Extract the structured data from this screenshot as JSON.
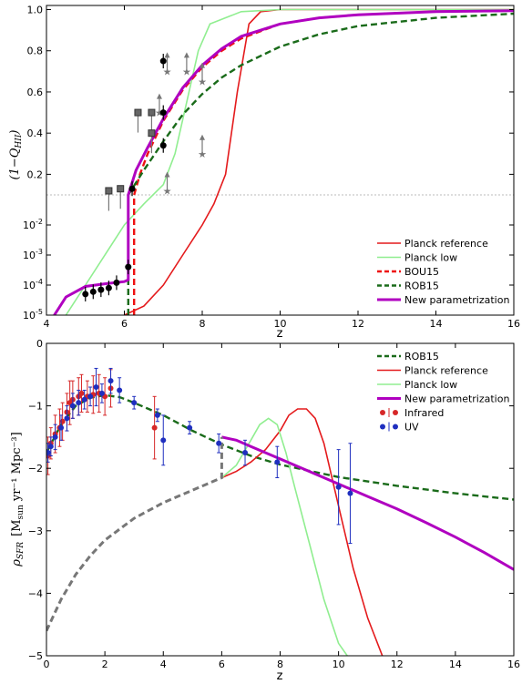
{
  "chart_data": [
    {
      "type": "line",
      "panel": "top",
      "xlabel": "z",
      "ylabel": "(1−Q_HII)",
      "ylabel_display": "(1−Q",
      "ylabel_sub": "HII",
      "ylabel_close": ")",
      "xlim": [
        4,
        16
      ],
      "x_ticks": [
        "4",
        "6",
        "8",
        "10",
        "12",
        "14",
        "16"
      ],
      "y_upper_scale": "linear",
      "y_upper_range": [
        0.1,
        1.02
      ],
      "y_upper_ticks": [
        "0.2",
        "0.4",
        "0.6",
        "0.8",
        "1.0"
      ],
      "y_lower_scale": "log",
      "y_lower_range": [
        1e-05,
        0.1
      ],
      "y_lower_ticks_exp": [
        "-5",
        "-4",
        "-3",
        "-2"
      ],
      "y_lower_base": "10",
      "legend_position": "lower-right",
      "series": [
        {
          "name": "Planck reference",
          "color": "#e41a1c",
          "style": "solid",
          "x": [
            4.0,
            5.0,
            6.0,
            6.5,
            7.0,
            7.5,
            8.0,
            8.3,
            8.6,
            8.9,
            9.2,
            9.5,
            10,
            11,
            12,
            16
          ],
          "y": [
            1e-07,
            1e-06,
            1e-05,
            2e-05,
            0.0001,
            0.001,
            0.01,
            0.05,
            0.2,
            0.6,
            0.93,
            0.99,
            1.0,
            1.0,
            1.0,
            1.0
          ]
        },
        {
          "name": "Planck low",
          "color": "#90ee90",
          "style": "solid",
          "x": [
            4.0,
            5.0,
            6.0,
            6.5,
            7.0,
            7.3,
            7.6,
            7.9,
            8.2,
            9,
            10,
            12,
            16
          ],
          "y": [
            1e-06,
            0.0001,
            0.01,
            0.05,
            0.15,
            0.3,
            0.55,
            0.8,
            0.93,
            0.99,
            1.0,
            1.0,
            1.0
          ]
        },
        {
          "name": "BOU15",
          "color": "#ee1111",
          "style": "dashed",
          "x": [
            6.25,
            6.25,
            6.4,
            6.6,
            7.0,
            7.5,
            8.0,
            8.5,
            9,
            10,
            11,
            12,
            14,
            16
          ],
          "y": [
            1e-05,
            0.1,
            0.2,
            0.3,
            0.46,
            0.61,
            0.72,
            0.8,
            0.86,
            0.93,
            0.96,
            0.975,
            0.99,
            0.995
          ]
        },
        {
          "name": "ROB15",
          "color": "#1a6b1a",
          "style": "dashed",
          "x": [
            6.1,
            6.1,
            6.5,
            7.0,
            7.5,
            8.0,
            8.5,
            9,
            10,
            11,
            12,
            14,
            16
          ],
          "y": [
            1e-05,
            0.1,
            0.22,
            0.36,
            0.49,
            0.59,
            0.67,
            0.73,
            0.82,
            0.88,
            0.92,
            0.96,
            0.98
          ]
        },
        {
          "name": "New parametrization",
          "color": "#b000c0",
          "style": "solid",
          "x": [
            4.2,
            4.5,
            5.0,
            5.5,
            6.0,
            6.1,
            6.1,
            6.3,
            6.6,
            7.0,
            7.5,
            8.0,
            8.5,
            9,
            10,
            11,
            12,
            14,
            16
          ],
          "y": [
            1e-05,
            4e-05,
            9e-05,
            0.00011,
            0.00013,
            0.00015,
            0.1,
            0.22,
            0.33,
            0.47,
            0.62,
            0.73,
            0.81,
            0.87,
            0.93,
            0.96,
            0.975,
            0.99,
            0.995
          ]
        }
      ],
      "observations": {
        "circles": [
          {
            "x": 5.0,
            "y": 5e-05
          },
          {
            "x": 5.2,
            "y": 6e-05
          },
          {
            "x": 5.4,
            "y": 7e-05
          },
          {
            "x": 5.6,
            "y": 8e-05
          },
          {
            "x": 5.8,
            "y": 0.00012
          },
          {
            "x": 6.1,
            "y": 0.0004
          },
          {
            "x": 6.2,
            "y": 0.13
          },
          {
            "x": 7.0,
            "y": 0.75
          },
          {
            "x": 7.0,
            "y": 0.5
          },
          {
            "x": 7.0,
            "y": 0.34
          }
        ],
        "squares": [
          {
            "x": 5.6,
            "y": 0.12
          },
          {
            "x": 5.9,
            "y": 0.13
          },
          {
            "x": 6.35,
            "y": 0.5
          },
          {
            "x": 6.7,
            "y": 0.5
          },
          {
            "x": 6.7,
            "y": 0.4
          }
        ],
        "stars": [
          {
            "x": 6.9,
            "y": 0.5
          },
          {
            "x": 7.1,
            "y": 0.12
          },
          {
            "x": 7.1,
            "y": 0.7
          },
          {
            "x": 7.6,
            "y": 0.7
          },
          {
            "x": 8.0,
            "y": 0.65
          },
          {
            "x": 8.0,
            "y": 0.3
          }
        ]
      }
    },
    {
      "type": "line",
      "panel": "bottom",
      "xlabel": "z",
      "ylabel_display": "ρ",
      "ylabel_sub": "SFR",
      "ylabel_units": "[M",
      "ylabel_units_sub": "sun",
      "ylabel_units_rest": " yr⁻¹ Mpc⁻³]",
      "xlim": [
        0,
        16
      ],
      "ylim": [
        -5,
        0
      ],
      "x_ticks": [
        "0",
        "2",
        "4",
        "6",
        "8",
        "10",
        "12",
        "14",
        "16"
      ],
      "y_ticks": [
        "0",
        "−1",
        "−2",
        "−3",
        "−4",
        "−5"
      ],
      "legend_position": "top-right",
      "series": [
        {
          "name": "ROB15",
          "color": "#1a6b1a",
          "style": "dashed",
          "x": [
            0,
            0.5,
            1,
            1.5,
            2,
            2.5,
            3,
            4,
            5,
            6,
            7,
            8,
            10,
            12,
            14,
            16
          ],
          "y": [
            -1.75,
            -1.3,
            -1.0,
            -0.87,
            -0.83,
            -0.86,
            -0.95,
            -1.15,
            -1.4,
            -1.62,
            -1.8,
            -1.94,
            -2.14,
            -2.28,
            -2.4,
            -2.5
          ]
        },
        {
          "name": "Planck reference",
          "color": "#e41a1c",
          "style": "solid",
          "x": [
            6.0,
            6.5,
            7.0,
            7.5,
            8.0,
            8.3,
            8.6,
            8.9,
            9.2,
            9.5,
            10.0,
            10.5,
            11.0,
            11.5
          ],
          "y": [
            -2.15,
            -2.05,
            -1.9,
            -1.7,
            -1.4,
            -1.15,
            -1.05,
            -1.05,
            -1.2,
            -1.6,
            -2.6,
            -3.6,
            -4.4,
            -5.0
          ]
        },
        {
          "name": "Planck low",
          "color": "#90ee90",
          "style": "solid",
          "x": [
            6.0,
            6.5,
            7.0,
            7.3,
            7.6,
            7.9,
            8.2,
            8.5,
            9.0,
            9.5,
            10.0,
            10.3
          ],
          "y": [
            -2.15,
            -1.95,
            -1.55,
            -1.3,
            -1.2,
            -1.3,
            -1.75,
            -2.3,
            -3.2,
            -4.1,
            -4.8,
            -5.0
          ]
        },
        {
          "name": "New parametrization",
          "color": "#b000c0",
          "style": "solid",
          "x": [
            6.0,
            6.5,
            7,
            8,
            9,
            10,
            11,
            12,
            13,
            14,
            15,
            16
          ],
          "y": [
            -1.5,
            -1.55,
            -1.65,
            -1.85,
            -2.05,
            -2.25,
            -2.45,
            -2.65,
            -2.87,
            -3.1,
            -3.35,
            -3.62
          ]
        },
        {
          "name": "",
          "color": "#777777",
          "style": "dashed",
          "x": [
            0,
            0.5,
            1,
            1.5,
            2,
            3,
            4,
            5,
            6,
            6,
            6
          ],
          "y": [
            -4.6,
            -4.1,
            -3.7,
            -3.4,
            -3.15,
            -2.8,
            -2.55,
            -2.35,
            -2.15,
            -1.95,
            -1.5
          ]
        }
      ],
      "infrared": {
        "name": "Infrared",
        "color": "#d62728",
        "x": [
          0.05,
          0.15,
          0.3,
          0.45,
          0.55,
          0.7,
          0.8,
          0.9,
          1.1,
          1.2,
          1.4,
          1.6,
          1.8,
          2.0,
          2.2,
          3.7
        ],
        "y": [
          -1.8,
          -1.6,
          -1.45,
          -1.35,
          -1.25,
          -1.1,
          -0.95,
          -0.9,
          -0.85,
          -0.8,
          -0.85,
          -0.82,
          -0.8,
          -0.85,
          -0.72,
          -1.35
        ],
        "err": [
          0.3,
          0.25,
          0.3,
          0.3,
          0.3,
          0.3,
          0.35,
          0.3,
          0.3,
          0.3,
          0.25,
          0.3,
          0.3,
          0.3,
          0.3,
          0.5
        ]
      },
      "uv": {
        "name": "UV",
        "color": "#1f2fbf",
        "x": [
          0.05,
          0.15,
          0.3,
          0.5,
          0.7,
          0.9,
          1.1,
          1.3,
          1.5,
          1.7,
          1.9,
          2.2,
          2.5,
          3.0,
          3.8,
          4.0,
          4.9,
          5.9,
          6.8,
          7.9,
          10.0,
          10.4
        ],
        "y": [
          -1.75,
          -1.65,
          -1.5,
          -1.35,
          -1.2,
          -1.0,
          -0.95,
          -0.9,
          -0.85,
          -0.7,
          -0.8,
          -0.6,
          -0.75,
          -0.95,
          -1.15,
          -1.55,
          -1.35,
          -1.6,
          -1.75,
          -1.9,
          -2.3,
          -2.4
        ],
        "err": [
          0.15,
          0.15,
          0.2,
          0.2,
          0.2,
          0.2,
          0.2,
          0.15,
          0.15,
          0.3,
          0.15,
          0.2,
          0.2,
          0.1,
          0.1,
          0.4,
          0.1,
          0.15,
          0.2,
          0.25,
          0.6,
          0.8
        ]
      }
    }
  ]
}
